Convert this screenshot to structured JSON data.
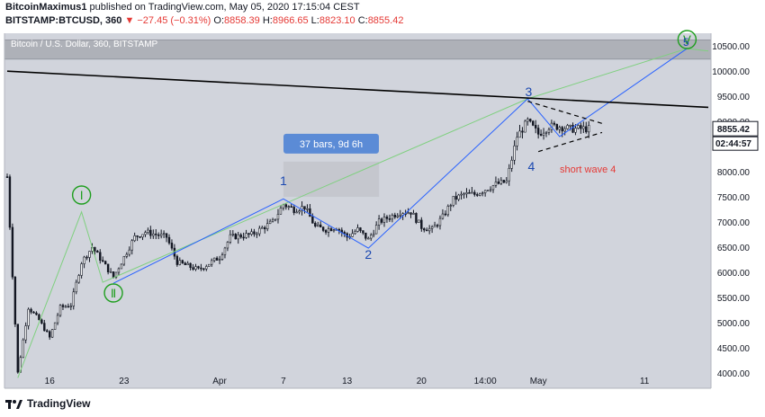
{
  "header": {
    "author": "BitcoinMaximus1",
    "published_text": "published on TradingView.com, May 05, 2020 17:15:04 CEST",
    "symbol": "BITSTAMP:BTCUSD, 360",
    "change": "▼ −27.45 (−0.31%)",
    "open_label": "O:",
    "open": "8858.39",
    "high_label": "H:",
    "high": "8966.65",
    "low_label": "L:",
    "low": "8823.10",
    "close_label": "C:",
    "close": "8855.42"
  },
  "chart_title": "Bitcoin / U.S. Dollar, 360, BITSTAMP",
  "price_labels": [
    "10500.00",
    "10000.00",
    "9500.00",
    "9000.00",
    "8500.00",
    "8000.00",
    "7500.00",
    "7000.00",
    "6500.00",
    "6000.00",
    "5500.00",
    "5000.00",
    "4500.00",
    "4000.00"
  ],
  "last_price": "8855.42",
  "countdown": "02:44:57",
  "date_labels": [
    "16",
    "23",
    "Apr",
    "7",
    "13",
    "20",
    "14:00",
    "May",
    "11"
  ],
  "annotations": {
    "bars_box": "37 bars, 9d 6h",
    "wave_i": "Ⅰ",
    "wave_ii": "Ⅱ",
    "wave_v": "Ⅴ",
    "wave_v_num": "5",
    "w1": "1",
    "w2": "2",
    "w3": "3",
    "w4": "4",
    "short_wave": "short wave 4"
  },
  "footer": {
    "brand": "TradingView"
  },
  "colors": {
    "plot_bg": "#d1d4dc",
    "candle": "#131722",
    "wave_line": "#2962ff",
    "green": "#1e9e1e",
    "annotation_blue": "#1a47b0",
    "short_wave_red": "#e53935",
    "trend_line": "#000000",
    "zone": "#aeb1b8"
  },
  "chart_data": {
    "type": "candlestick",
    "title": "Bitcoin / U.S. Dollar, 360, BITSTAMP",
    "ylim": [
      3800,
      10700
    ],
    "x_range": [
      "2020-03-12",
      "2020-05-17"
    ],
    "x_ticks": [
      {
        "date": "2020-03-16",
        "label": "16"
      },
      {
        "date": "2020-03-23",
        "label": "23"
      },
      {
        "date": "2020-04-01",
        "label": "Apr"
      },
      {
        "date": "2020-04-07",
        "label": "7"
      },
      {
        "date": "2020-04-13",
        "label": "13"
      },
      {
        "date": "2020-04-20",
        "label": "20"
      },
      {
        "date": "2020-04-26",
        "label": "14:00"
      },
      {
        "date": "2020-05-01",
        "label": "May"
      },
      {
        "date": "2020-05-11",
        "label": "11"
      }
    ],
    "price_anchors": [
      {
        "date": "2020-03-12",
        "price": 7900
      },
      {
        "date": "2020-03-13",
        "price": 4000
      },
      {
        "date": "2020-03-14",
        "price": 5300
      },
      {
        "date": "2020-03-15",
        "price": 5050
      },
      {
        "date": "2020-03-16",
        "price": 4700
      },
      {
        "date": "2020-03-17",
        "price": 5300
      },
      {
        "date": "2020-03-18",
        "price": 5350
      },
      {
        "date": "2020-03-19",
        "price": 6200
      },
      {
        "date": "2020-03-20",
        "price": 6500
      },
      {
        "date": "2020-03-21",
        "price": 6200
      },
      {
        "date": "2020-03-22",
        "price": 5900
      },
      {
        "date": "2020-03-23",
        "price": 6300
      },
      {
        "date": "2020-03-24",
        "price": 6700
      },
      {
        "date": "2020-03-25",
        "price": 6800
      },
      {
        "date": "2020-03-27",
        "price": 6700
      },
      {
        "date": "2020-03-28",
        "price": 6200
      },
      {
        "date": "2020-03-30",
        "price": 6050
      },
      {
        "date": "2020-04-01",
        "price": 6300
      },
      {
        "date": "2020-04-02",
        "price": 6700
      },
      {
        "date": "2020-04-04",
        "price": 6750
      },
      {
        "date": "2020-04-06",
        "price": 7000
      },
      {
        "date": "2020-04-07",
        "price": 7350
      },
      {
        "date": "2020-04-08",
        "price": 7250
      },
      {
        "date": "2020-04-09",
        "price": 7300
      },
      {
        "date": "2020-04-10",
        "price": 6900
      },
      {
        "date": "2020-04-11",
        "price": 6850
      },
      {
        "date": "2020-04-12",
        "price": 6900
      },
      {
        "date": "2020-04-13",
        "price": 6700
      },
      {
        "date": "2020-04-14",
        "price": 6850
      },
      {
        "date": "2020-04-15",
        "price": 6650
      },
      {
        "date": "2020-04-16",
        "price": 7000
      },
      {
        "date": "2020-04-17",
        "price": 7100
      },
      {
        "date": "2020-04-18",
        "price": 7200
      },
      {
        "date": "2020-04-19",
        "price": 7200
      },
      {
        "date": "2020-04-20",
        "price": 6900
      },
      {
        "date": "2020-04-21",
        "price": 6850
      },
      {
        "date": "2020-04-22",
        "price": 7100
      },
      {
        "date": "2020-04-23",
        "price": 7450
      },
      {
        "date": "2020-04-24",
        "price": 7550
      },
      {
        "date": "2020-04-25",
        "price": 7550
      },
      {
        "date": "2020-04-26",
        "price": 7650
      },
      {
        "date": "2020-04-27",
        "price": 7750
      },
      {
        "date": "2020-04-28",
        "price": 7800
      },
      {
        "date": "2020-04-29",
        "price": 8700
      },
      {
        "date": "2020-04-30",
        "price": 9000
      },
      {
        "date": "2020-05-01",
        "price": 8750
      },
      {
        "date": "2020-05-02",
        "price": 8900
      },
      {
        "date": "2020-05-03",
        "price": 8900
      },
      {
        "date": "2020-05-04",
        "price": 8850
      },
      {
        "date": "2020-05-05",
        "price": 8855
      }
    ],
    "wave_path": [
      {
        "date": "2020-03-22",
        "price": 5780,
        "label": "Ⅱ"
      },
      {
        "date": "2020-04-07",
        "price": 7460,
        "label": "1"
      },
      {
        "date": "2020-04-15",
        "price": 6480,
        "label": "2"
      },
      {
        "date": "2020-04-30",
        "price": 9450,
        "label": "3"
      },
      {
        "date": "2020-05-03",
        "price": 8700
      },
      {
        "date": "2020-05-15",
        "price": 10450,
        "label": "5"
      }
    ],
    "green_path": [
      {
        "date": "2020-03-13",
        "price": 3900
      },
      {
        "date": "2020-03-19",
        "price": 7200,
        "label": "Ⅰ"
      },
      {
        "date": "2020-03-21",
        "price": 5800
      },
      {
        "date": "2020-04-30",
        "price": 9450
      },
      {
        "date": "2020-05-15",
        "price": 10450
      },
      {
        "date": "2020-05-17",
        "price": 10400
      }
    ],
    "trend_line": [
      {
        "date": "2020-03-12",
        "price": 10000
      },
      {
        "date": "2020-05-17",
        "price": 9280
      }
    ],
    "resistance_zone": [
      10240,
      10620
    ],
    "triangle_upper": [
      {
        "date": "2020-04-30",
        "price": 9400
      },
      {
        "date": "2020-05-07",
        "price": 8960
      }
    ],
    "triangle_lower": [
      {
        "date": "2020-05-01",
        "price": 8400
      },
      {
        "date": "2020-05-07",
        "price": 8780
      }
    ],
    "bars_box_range": {
      "from": "2020-04-07",
      "to": "2020-04-16",
      "price_low": 7500,
      "price_high": 8200
    }
  }
}
